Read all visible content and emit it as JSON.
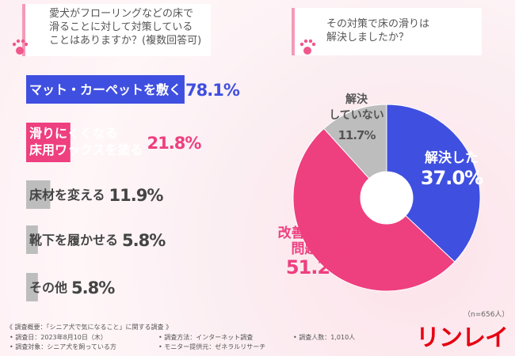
{
  "chart_data": [
    {
      "type": "bar",
      "orientation": "horizontal",
      "title": "愛犬がフローリングなどの床で\n滑ることに対して対策している\nことはありますか？(複数回答可)",
      "categories": [
        "マット・カーペットを敷く",
        "滑りにくくなる\n床用ワックスを塗る",
        "床材を変える",
        "靴下を履かせる",
        "その他"
      ],
      "values": [
        78.1,
        21.8,
        11.9,
        5.8,
        5.8
      ],
      "value_labels": [
        "78.1%",
        "21.8%",
        "11.9%",
        "5.8%",
        "5.8%"
      ],
      "colors": [
        "#3f4fe0",
        "#ee3f7f",
        "#bdbdbd",
        "#bdbdbd",
        "#bdbdbd"
      ]
    },
    {
      "type": "pie",
      "donut": true,
      "title": "その対策で床の滑りは\n解決しましたか？",
      "categories": [
        "解決した",
        "改善はしたが、\n問題がある",
        "解決\nしていない"
      ],
      "values": [
        37.0,
        51.2,
        11.7
      ],
      "value_labels": [
        "37.0%",
        "51.2%",
        "11.7%"
      ],
      "colors": [
        "#3f4fe0",
        "#ee3f7f",
        "#bdbdbd"
      ],
      "note": "（n=656人）"
    }
  ],
  "footer": {
    "heading": "《 調査概要：「シニア犬で気になること」に関する調査 》",
    "items": [
      "• 調査日：2023年8月10日（木）",
      "• 調査方法：インターネット調査",
      "• 調査人数：1,010人",
      "• 調査対象：シニア犬を飼っている方",
      "• モニター提供元：ゼネラルリサーチ"
    ],
    "logo": "リンレイ"
  }
}
